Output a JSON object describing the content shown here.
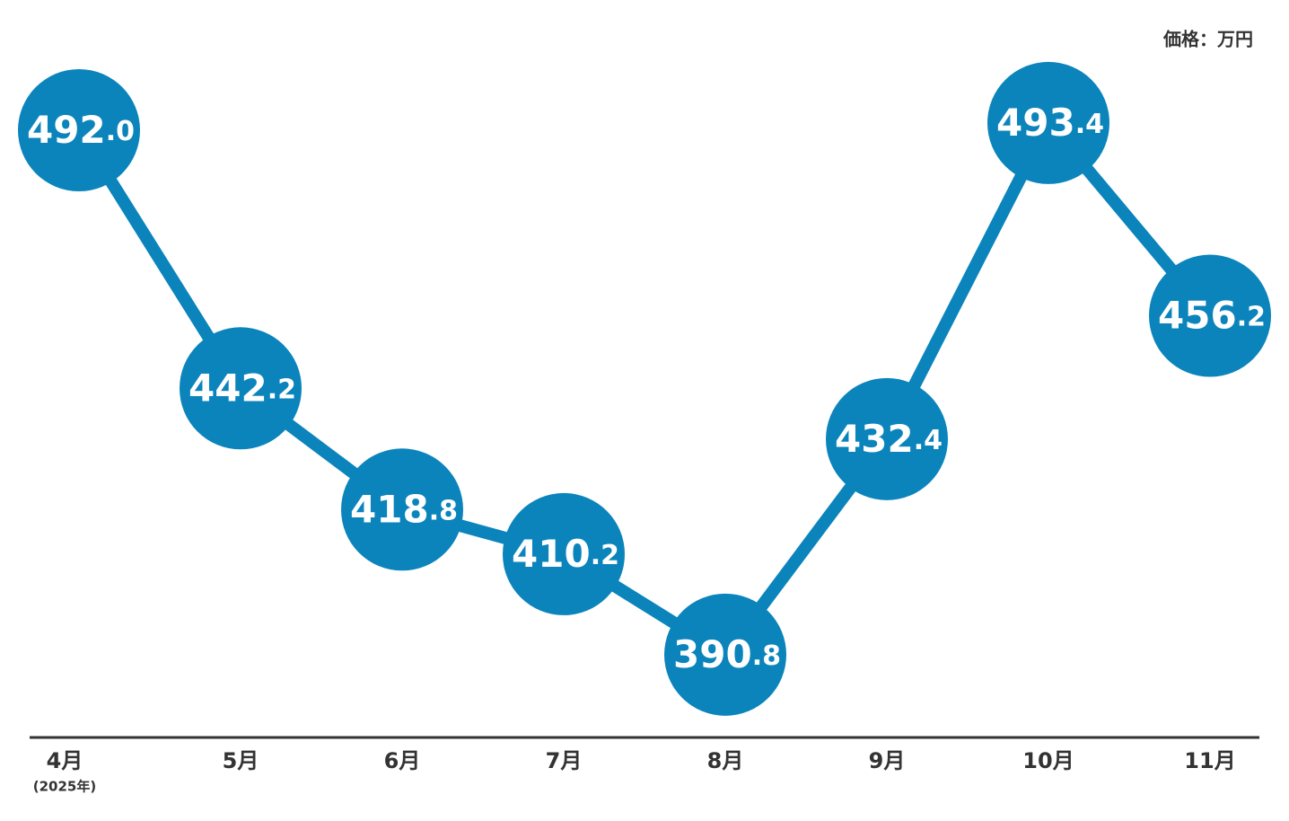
{
  "chart_data": {
    "type": "line",
    "unit_label": "価格：万円",
    "categories": [
      "4月",
      "5月",
      "6月",
      "7月",
      "8月",
      "9月",
      "10月",
      "11月"
    ],
    "category_note": "(2025年)",
    "series": [
      {
        "color": "#0b84bc",
        "values": [
          492.0,
          442.2,
          418.8,
          410.2,
          390.8,
          432.4,
          493.4,
          456.2
        ],
        "value_labels": [
          "492.0",
          "442.2",
          "418.8",
          "410.2",
          "390.8",
          "432.4",
          "493.4",
          "456.2"
        ]
      }
    ],
    "ylim": [
      375,
      505
    ]
  }
}
